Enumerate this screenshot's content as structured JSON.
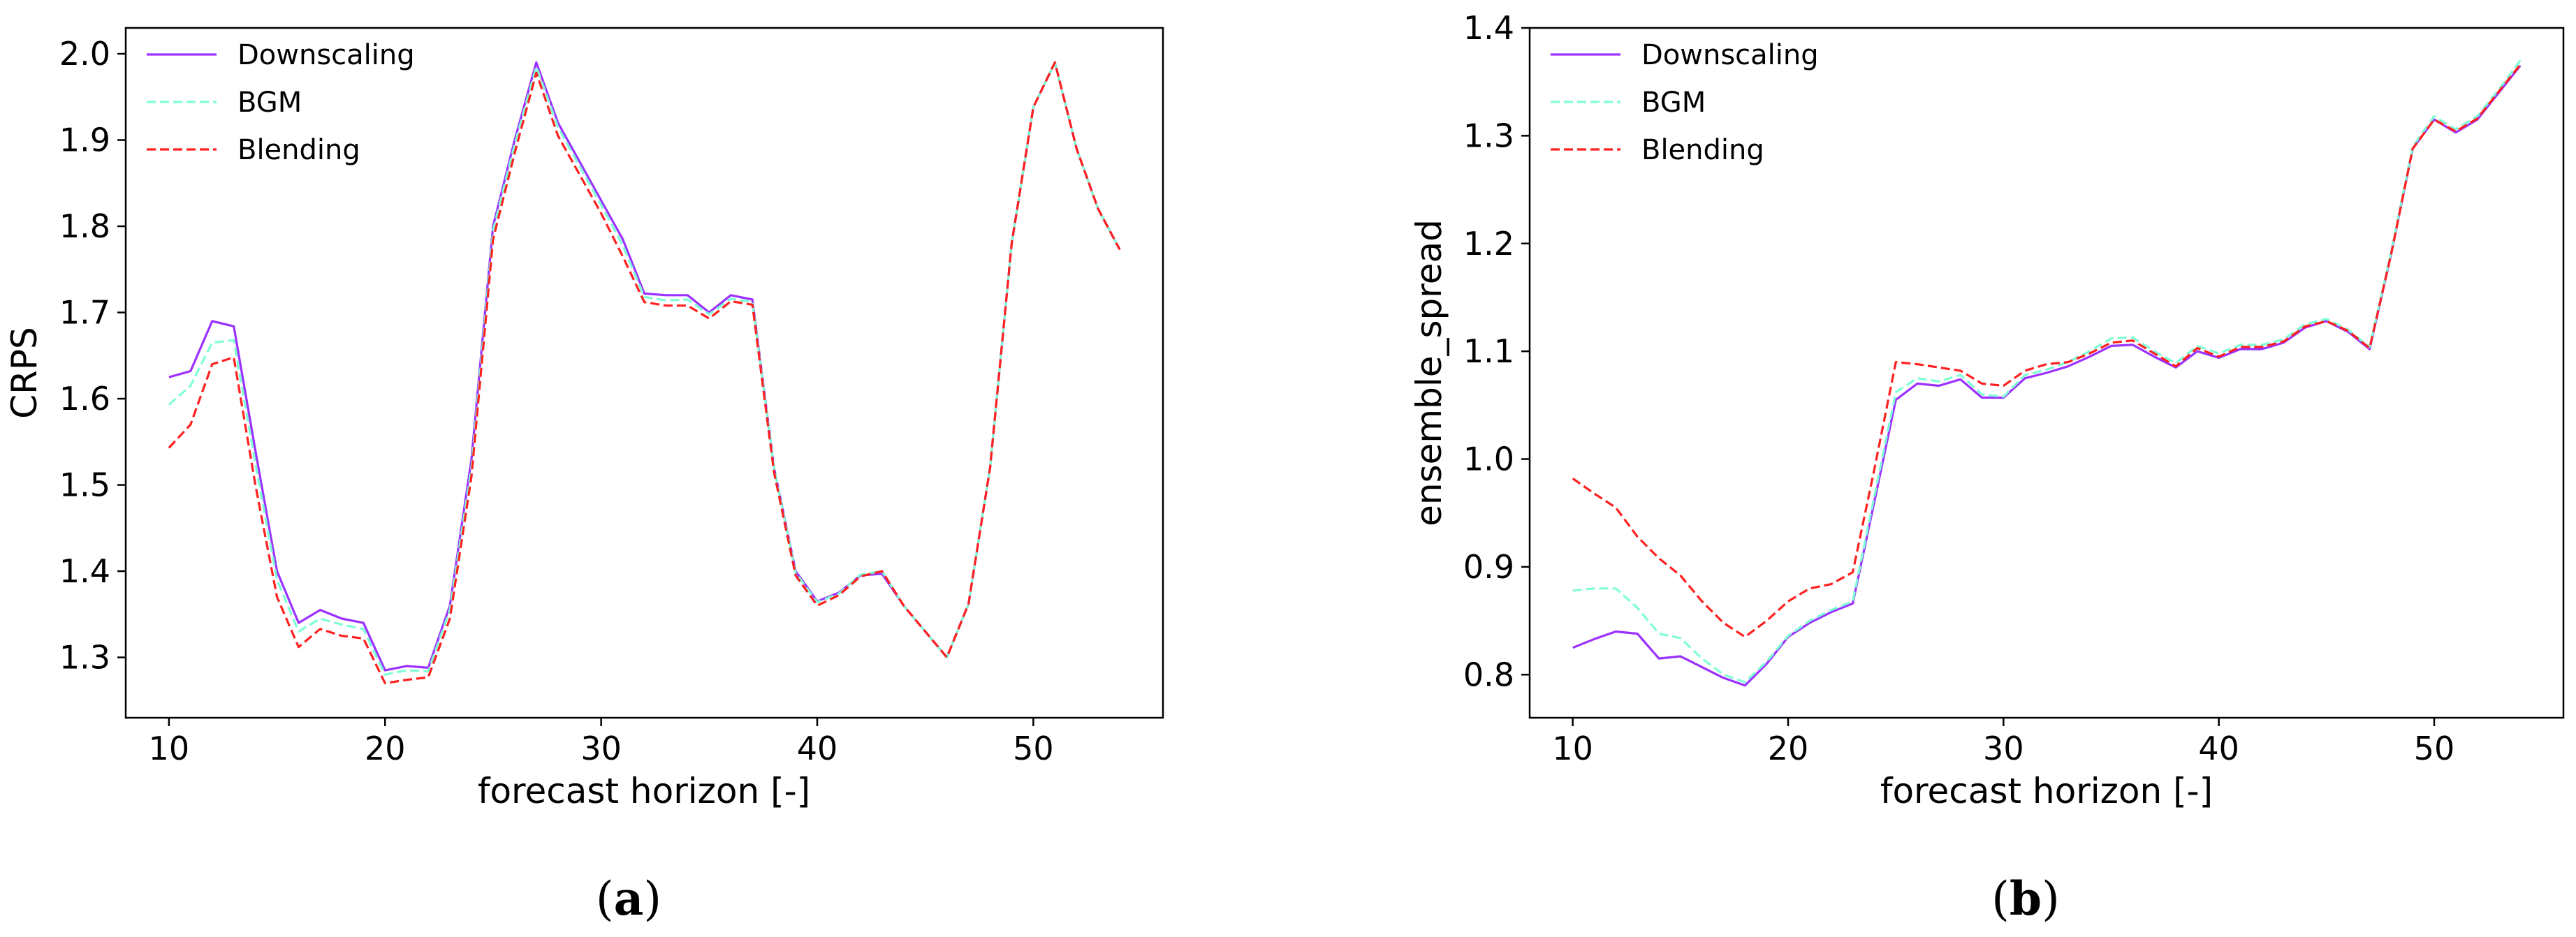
{
  "chart_data": [
    {
      "type": "line",
      "panel_label": "(a)",
      "panel_letter": "a",
      "xlabel": "forecast horizon [-]",
      "ylabel": "CRPS",
      "xlim": [
        8,
        56
      ],
      "ylim": [
        1.23,
        2.03
      ],
      "xticks": [
        10,
        20,
        30,
        40,
        50
      ],
      "yticks": [
        1.3,
        1.4,
        1.5,
        1.6,
        1.7,
        1.8,
        1.9,
        2.0
      ],
      "ytick_labels": [
        "1.3",
        "1.4",
        "1.5",
        "1.6",
        "1.7",
        "1.8",
        "1.9",
        "2.0"
      ],
      "grid": false,
      "legend_position": "top-left",
      "x": [
        10,
        11,
        12,
        13,
        14,
        15,
        16,
        17,
        18,
        19,
        20,
        21,
        22,
        23,
        24,
        25,
        26,
        27,
        28,
        29,
        30,
        31,
        32,
        33,
        34,
        35,
        36,
        37,
        38,
        39,
        40,
        41,
        42,
        43,
        44,
        45,
        46,
        47,
        48,
        49,
        50,
        51,
        52,
        53,
        54
      ],
      "series": [
        {
          "name": "Downscaling",
          "color": "#9b30ff",
          "dash": "solid",
          "values": [
            1.625,
            1.632,
            1.69,
            1.684,
            1.54,
            1.4,
            1.34,
            1.355,
            1.345,
            1.34,
            1.285,
            1.29,
            1.288,
            1.36,
            1.53,
            1.8,
            1.9,
            1.99,
            1.92,
            1.875,
            1.83,
            1.785,
            1.722,
            1.72,
            1.72,
            1.7,
            1.72,
            1.715,
            1.52,
            1.4,
            1.365,
            1.375,
            1.395,
            1.397,
            1.36,
            1.33,
            1.3,
            1.362,
            1.52,
            1.78,
            1.938,
            1.99,
            1.89,
            1.82,
            1.773
          ]
        },
        {
          "name": "BGM",
          "color": "#7fffd4",
          "dash": "dashed",
          "values": [
            1.593,
            1.615,
            1.665,
            1.668,
            1.525,
            1.39,
            1.33,
            1.345,
            1.338,
            1.333,
            1.28,
            1.285,
            1.284,
            1.355,
            1.52,
            1.795,
            1.895,
            1.985,
            1.915,
            1.87,
            1.825,
            1.778,
            1.718,
            1.714,
            1.715,
            1.698,
            1.716,
            1.712,
            1.52,
            1.398,
            1.364,
            1.374,
            1.396,
            1.4,
            1.36,
            1.33,
            1.3,
            1.362,
            1.52,
            1.78,
            1.938,
            1.99,
            1.89,
            1.82,
            1.773
          ]
        },
        {
          "name": "Blending",
          "color": "#ff2020",
          "dash": "dashed",
          "values": [
            1.543,
            1.57,
            1.64,
            1.648,
            1.5,
            1.37,
            1.312,
            1.333,
            1.325,
            1.322,
            1.27,
            1.274,
            1.277,
            1.345,
            1.51,
            1.785,
            1.885,
            1.978,
            1.905,
            1.86,
            1.815,
            1.765,
            1.712,
            1.708,
            1.708,
            1.693,
            1.713,
            1.709,
            1.515,
            1.395,
            1.36,
            1.372,
            1.394,
            1.4,
            1.36,
            1.33,
            1.3,
            1.362,
            1.52,
            1.78,
            1.938,
            1.99,
            1.89,
            1.82,
            1.773
          ]
        }
      ]
    },
    {
      "type": "line",
      "panel_label": "(b)",
      "panel_letter": "b",
      "xlabel": "forecast horizon [-]",
      "ylabel": "ensemble_spread",
      "xlim": [
        8,
        56
      ],
      "ylim": [
        0.76,
        1.4
      ],
      "xticks": [
        10,
        20,
        30,
        40,
        50
      ],
      "yticks": [
        0.8,
        0.9,
        1.0,
        1.1,
        1.2,
        1.3,
        1.4
      ],
      "ytick_labels": [
        "0.8",
        "0.9",
        "1.0",
        "1.1",
        "1.2",
        "1.3",
        "1.4"
      ],
      "grid": false,
      "legend_position": "top-left",
      "x": [
        10,
        11,
        12,
        13,
        14,
        15,
        16,
        17,
        18,
        19,
        20,
        21,
        22,
        23,
        24,
        25,
        26,
        27,
        28,
        29,
        30,
        31,
        32,
        33,
        34,
        35,
        36,
        37,
        38,
        39,
        40,
        41,
        42,
        43,
        44,
        45,
        46,
        47,
        48,
        49,
        50,
        51,
        52,
        53,
        54
      ],
      "series": [
        {
          "name": "Downscaling",
          "color": "#9b30ff",
          "dash": "solid",
          "values": [
            0.825,
            0.833,
            0.84,
            0.838,
            0.815,
            0.817,
            0.807,
            0.797,
            0.79,
            0.81,
            0.835,
            0.848,
            0.858,
            0.866,
            0.96,
            1.055,
            1.07,
            1.068,
            1.074,
            1.057,
            1.057,
            1.075,
            1.08,
            1.086,
            1.095,
            1.105,
            1.106,
            1.095,
            1.085,
            1.1,
            1.094,
            1.102,
            1.102,
            1.108,
            1.122,
            1.128,
            1.118,
            1.102,
            1.19,
            1.288,
            1.315,
            1.303,
            1.315,
            1.34,
            1.365
          ]
        },
        {
          "name": "BGM",
          "color": "#7fffd4",
          "dash": "dashed",
          "values": [
            0.878,
            0.88,
            0.88,
            0.862,
            0.838,
            0.834,
            0.815,
            0.8,
            0.793,
            0.812,
            0.836,
            0.85,
            0.86,
            0.868,
            0.965,
            1.062,
            1.075,
            1.072,
            1.078,
            1.06,
            1.058,
            1.078,
            1.083,
            1.09,
            1.1,
            1.112,
            1.113,
            1.1,
            1.089,
            1.105,
            1.098,
            1.106,
            1.106,
            1.111,
            1.125,
            1.13,
            1.12,
            1.104,
            1.192,
            1.29,
            1.318,
            1.306,
            1.318,
            1.343,
            1.37
          ]
        },
        {
          "name": "Blending",
          "color": "#ff2020",
          "dash": "dashed",
          "values": [
            0.982,
            0.968,
            0.955,
            0.928,
            0.908,
            0.892,
            0.868,
            0.848,
            0.835,
            0.85,
            0.868,
            0.88,
            0.884,
            0.895,
            0.99,
            1.09,
            1.088,
            1.085,
            1.082,
            1.07,
            1.068,
            1.082,
            1.088,
            1.09,
            1.098,
            1.108,
            1.11,
            1.098,
            1.086,
            1.103,
            1.095,
            1.104,
            1.104,
            1.109,
            1.123,
            1.128,
            1.119,
            1.103,
            1.19,
            1.288,
            1.315,
            1.304,
            1.316,
            1.341,
            1.366
          ]
        }
      ]
    }
  ]
}
